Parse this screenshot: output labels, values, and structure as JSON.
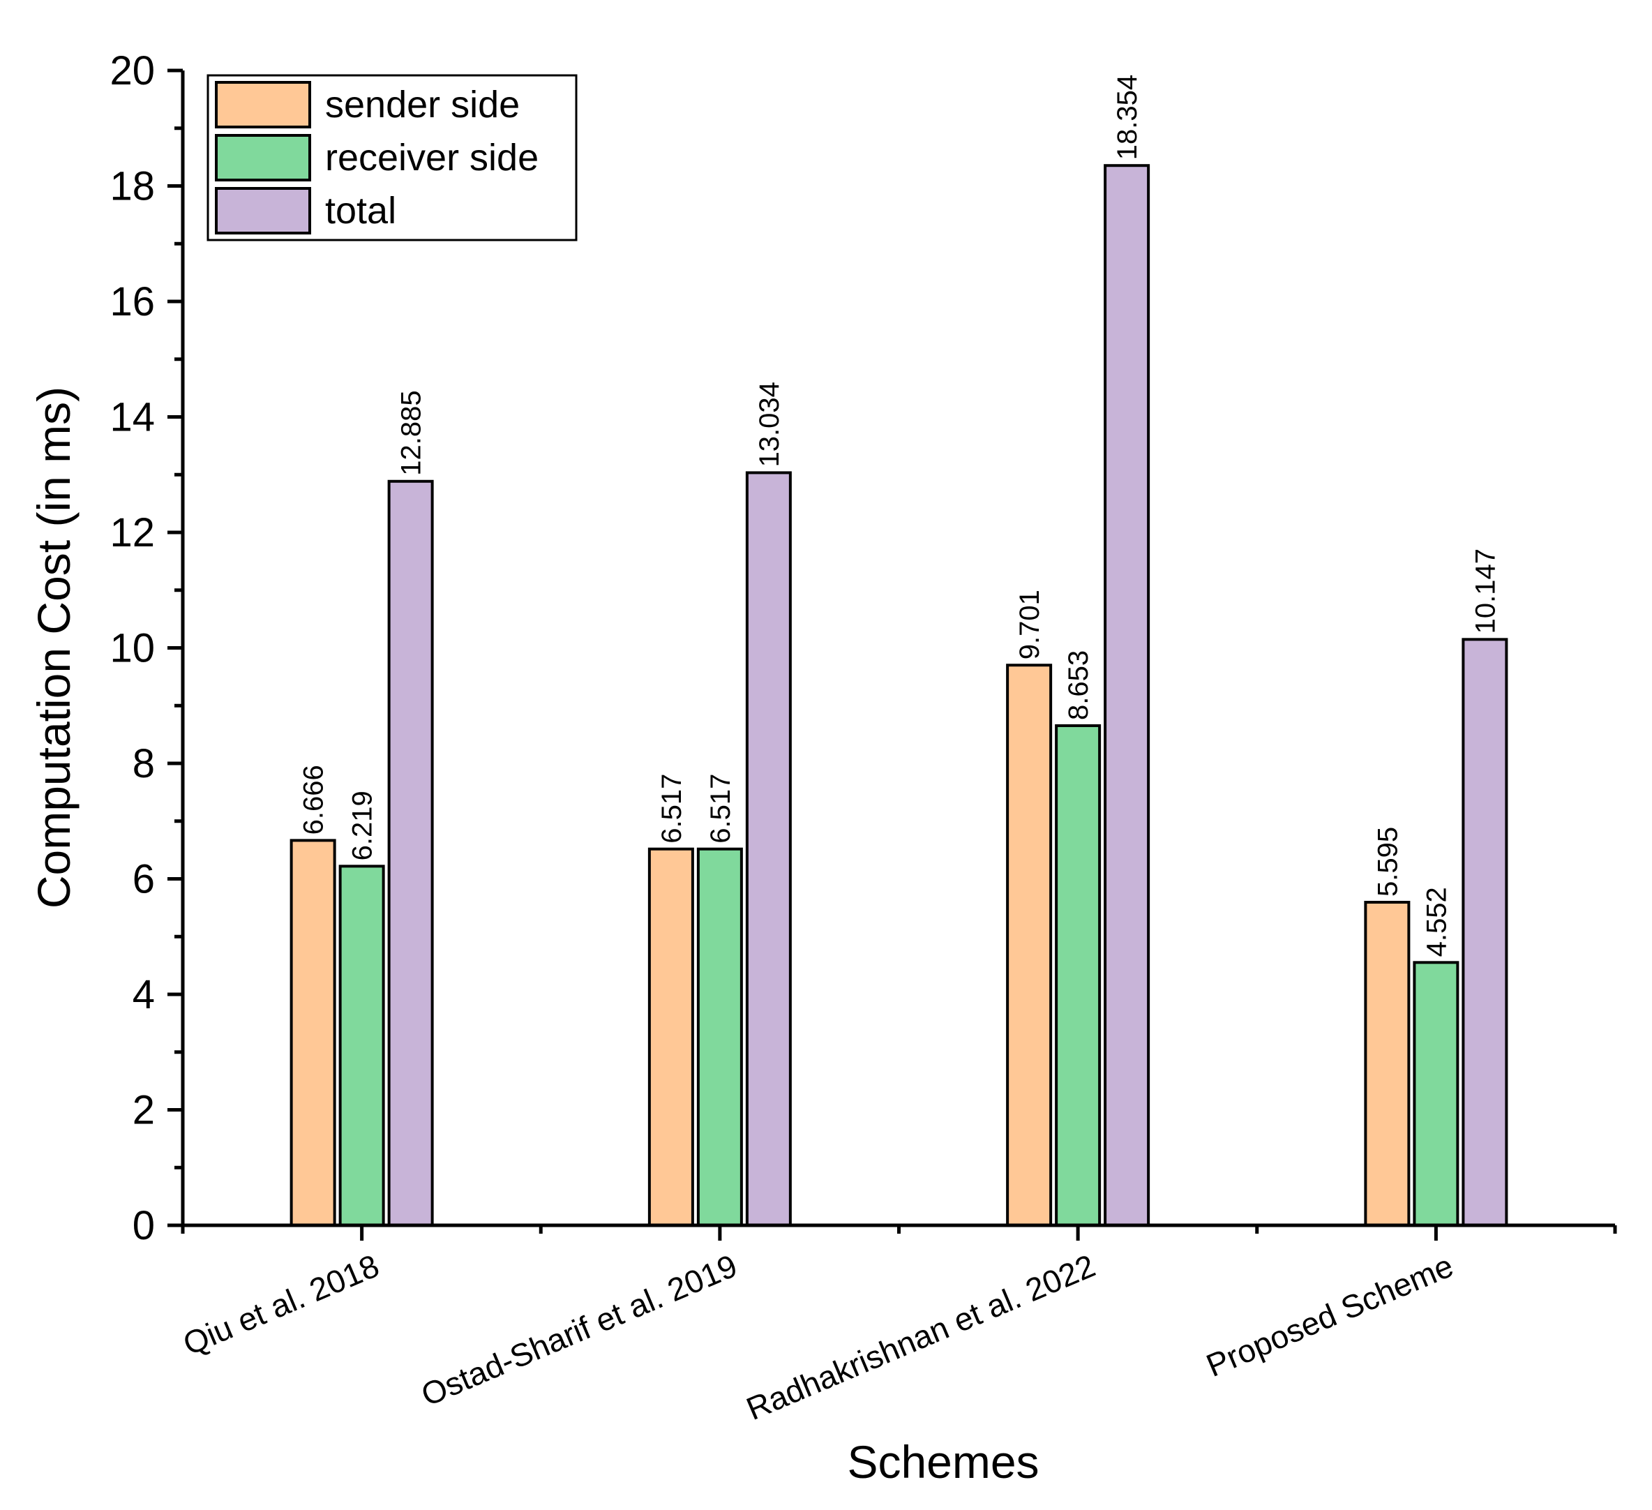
{
  "chart_data": {
    "type": "bar",
    "categories": [
      "Qiu et al. 2018",
      "Ostad-Sharif et al. 2019",
      "Radhakrishnan et al. 2022",
      "Proposed Scheme"
    ],
    "series": [
      {
        "name": "sender side",
        "color": "#FFC896",
        "values": [
          6.666,
          6.517,
          9.701,
          5.595
        ],
        "labels": [
          "6.666",
          "6.517",
          "9.701",
          "5.595"
        ]
      },
      {
        "name": "receiver side",
        "color": "#80D99C",
        "values": [
          6.219,
          6.517,
          8.653,
          4.552
        ],
        "labels": [
          "6.219",
          "6.517",
          "8.653",
          "4.552"
        ]
      },
      {
        "name": "total",
        "color": "#C8B4D8",
        "values": [
          12.885,
          13.034,
          18.354,
          10.147
        ],
        "labels": [
          "12.885",
          "13.034",
          "18.354",
          "10.147"
        ]
      }
    ],
    "xlabel": "Schemes",
    "ylabel": "Computation Cost (in ms)",
    "ylim": [
      0,
      20
    ],
    "yticks": [
      "0",
      "2",
      "4",
      "6",
      "8",
      "10",
      "12",
      "14",
      "16",
      "18",
      "20"
    ],
    "legend_position": "top-left"
  }
}
